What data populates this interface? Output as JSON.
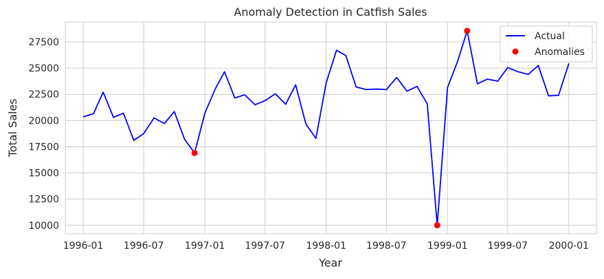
{
  "chart_data": {
    "type": "line",
    "title": "Anomaly Detection in Catfish Sales",
    "xlabel": "Year",
    "ylabel": "Total Sales",
    "xlim": [
      "1995-11-08",
      "2000-03-24"
    ],
    "ylim": [
      9200,
      29400
    ],
    "x_ticks": [
      "1996-01",
      "1996-07",
      "1997-01",
      "1997-07",
      "1998-01",
      "1998-07",
      "1999-01",
      "1999-07",
      "2000-01"
    ],
    "y_ticks": [
      10000,
      12500,
      15000,
      17500,
      20000,
      22500,
      25000,
      27500
    ],
    "grid": true,
    "legend_position": "top-right",
    "series": [
      {
        "name": "Actual",
        "kind": "line",
        "color": "#0000ff",
        "x": [
          "1996-01",
          "1996-02",
          "1996-03",
          "1996-04",
          "1996-05",
          "1996-06",
          "1996-07",
          "1996-08",
          "1996-09",
          "1996-10",
          "1996-11",
          "1996-12",
          "1997-01",
          "1997-02",
          "1997-03",
          "1997-04",
          "1997-05",
          "1997-06",
          "1997-07",
          "1997-08",
          "1997-09",
          "1997-10",
          "1997-11",
          "1997-12",
          "1998-01",
          "1998-02",
          "1998-03",
          "1998-04",
          "1998-05",
          "1998-06",
          "1998-07",
          "1998-08",
          "1998-09",
          "1998-10",
          "1998-11",
          "1998-12",
          "1999-01",
          "1999-02",
          "1999-03",
          "1999-04",
          "1999-05",
          "1999-06",
          "1999-07",
          "1999-08",
          "1999-09",
          "1999-10",
          "1999-11",
          "1999-12",
          "2000-01"
        ],
        "values": [
          20350,
          20650,
          22700,
          20300,
          20700,
          18100,
          18750,
          20250,
          19700,
          20850,
          18200,
          16900,
          20700,
          23000,
          24650,
          22150,
          22450,
          21500,
          21900,
          22550,
          21550,
          23400,
          19650,
          18300,
          23600,
          26700,
          26200,
          23200,
          22950,
          23000,
          22950,
          24100,
          22800,
          23250,
          21600,
          10000,
          23150,
          25700,
          28550,
          23500,
          23950,
          23750,
          25050,
          24650,
          24400,
          25250,
          22350,
          22400,
          25450
        ]
      },
      {
        "name": "Anomalies",
        "kind": "scatter",
        "color": "#ff0000",
        "x": [
          "1996-12",
          "1998-12",
          "1999-03"
        ],
        "values": [
          16900,
          10000,
          28550
        ]
      }
    ]
  }
}
